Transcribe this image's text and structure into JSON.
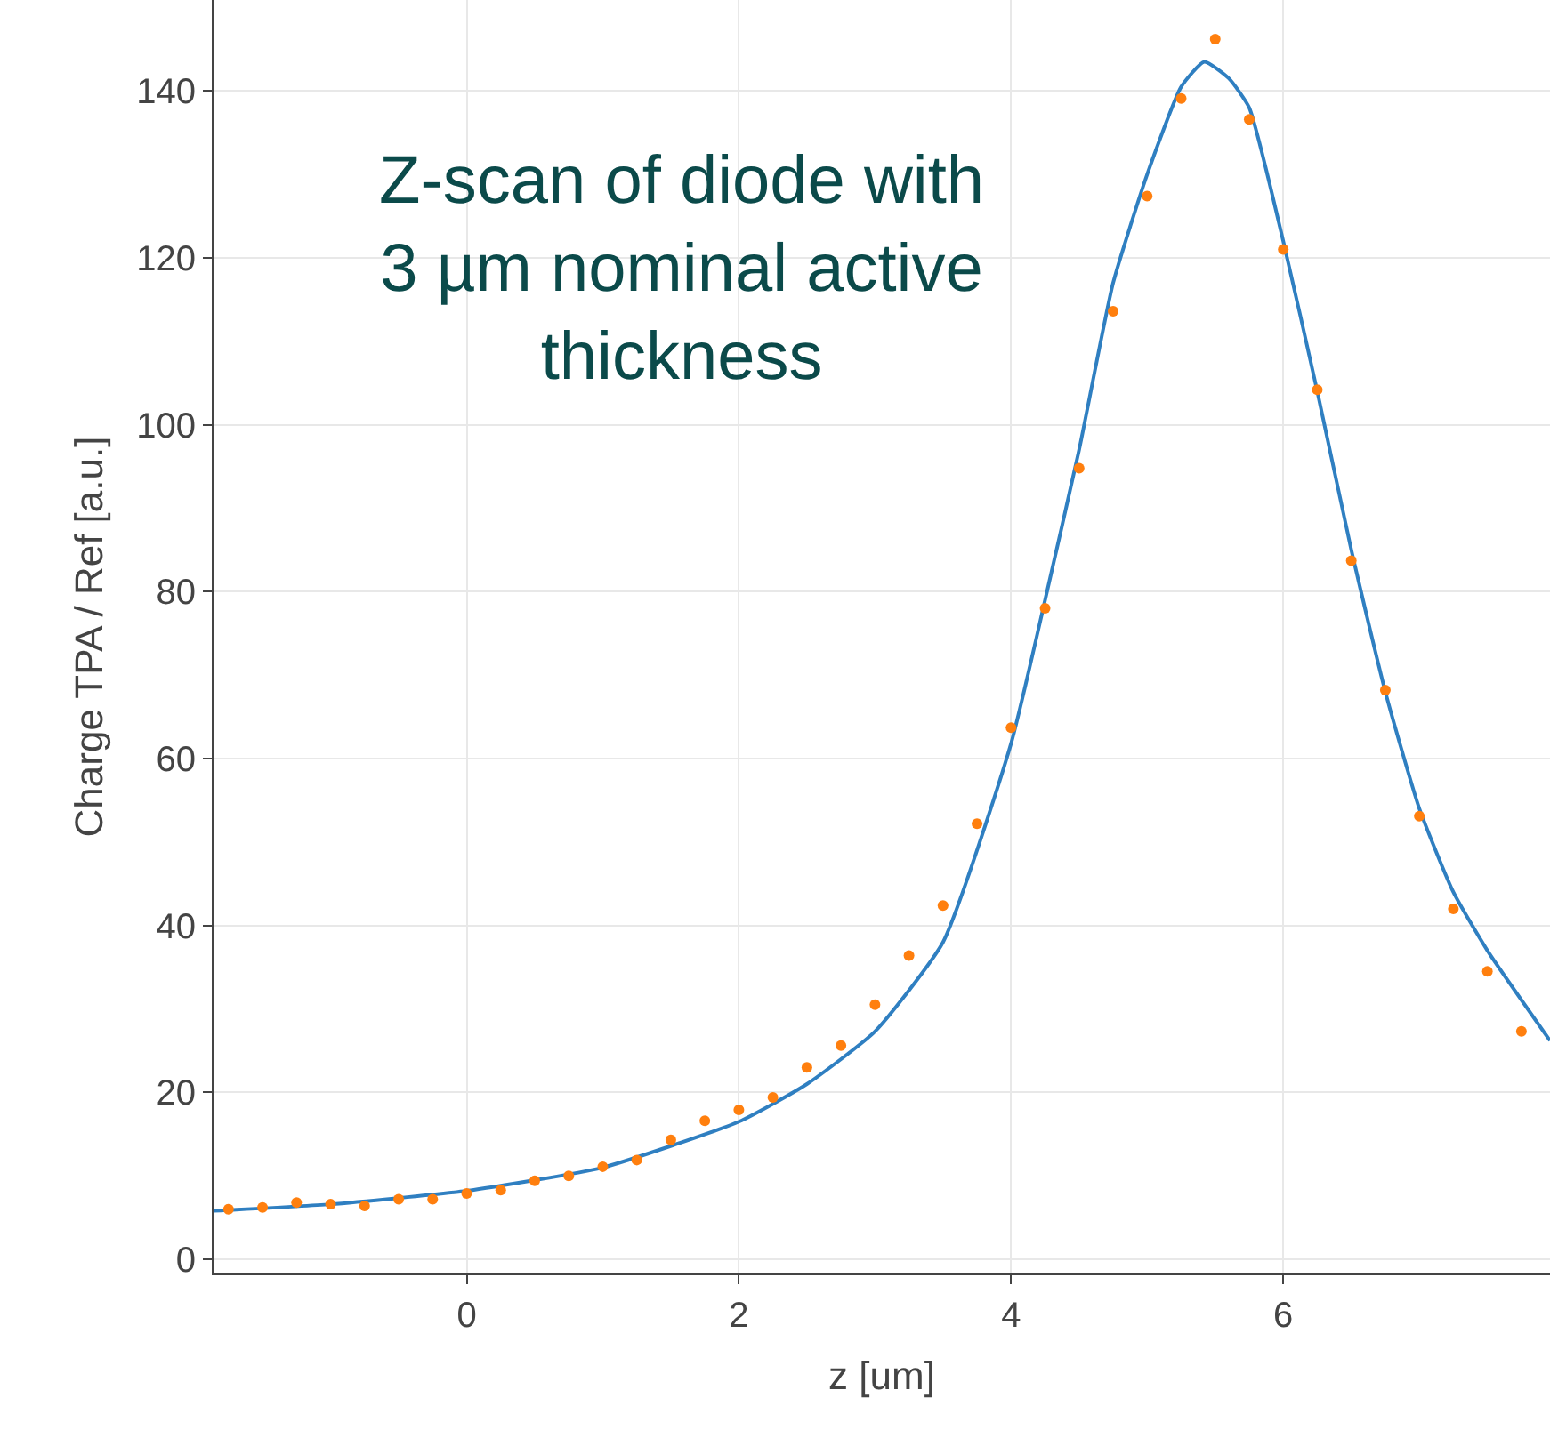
{
  "chart_data": {
    "type": "scatter",
    "xlabel": "z [um]",
    "ylabel": "Charge TPA / Ref [a.u.]",
    "annotations": [
      "Z-scan of diode with\n3 µm nominal active\nthickness"
    ],
    "xlim": [
      -1.86,
      7.96
    ],
    "ylim": [
      -1.7,
      150.9
    ],
    "xticks": [
      0,
      2,
      4,
      6
    ],
    "yticks": [
      0,
      20,
      40,
      60,
      80,
      100,
      120,
      140
    ],
    "grid": true,
    "series": [
      {
        "type": "line",
        "color": "#2f7fc1",
        "marker": "none",
        "x": [
          -1.86,
          -1,
          0,
          1,
          2,
          2.5,
          3,
          3.5,
          4,
          4.25,
          4.5,
          4.75,
          5,
          5.25,
          5.42,
          5.6,
          5.75,
          6,
          6.25,
          6.5,
          6.75,
          7,
          7.25,
          7.5,
          7.96
        ],
        "values": [
          5.8,
          6.6,
          8.2,
          11,
          16.5,
          21,
          27.3,
          38,
          61.8,
          79,
          97,
          117,
          130,
          140.5,
          143.5,
          141.5,
          138,
          122,
          104,
          85,
          68,
          54,
          44,
          37,
          26.2
        ]
      },
      {
        "color": "#ff7f0e",
        "marker": "circle",
        "x": [
          -1.75,
          -1.5,
          -1.25,
          -1,
          -0.75,
          -0.5,
          -0.25,
          0,
          0.25,
          0.5,
          0.75,
          1,
          1.25,
          1.5,
          1.75,
          2,
          2.25,
          2.5,
          2.75,
          3,
          3.25,
          3.5,
          3.75,
          4,
          4.25,
          4.5,
          4.75,
          5,
          5.25,
          5.5,
          5.75,
          6,
          6.25,
          6.5,
          6.75,
          7,
          7.25,
          7.5,
          7.75
        ],
        "values": [
          6.0,
          6.2,
          6.8,
          6.6,
          6.4,
          7.2,
          7.2,
          7.9,
          8.3,
          9.4,
          10.0,
          11.1,
          11.9,
          14.3,
          16.6,
          17.9,
          19.4,
          23.0,
          25.6,
          30.5,
          36.4,
          42.4,
          52.2,
          63.7,
          78.0,
          94.8,
          113.6,
          127.4,
          139.1,
          146.2,
          136.6,
          121.0,
          104.2,
          83.7,
          68.2,
          53.1,
          42.0,
          34.5,
          27.3
        ]
      }
    ]
  }
}
